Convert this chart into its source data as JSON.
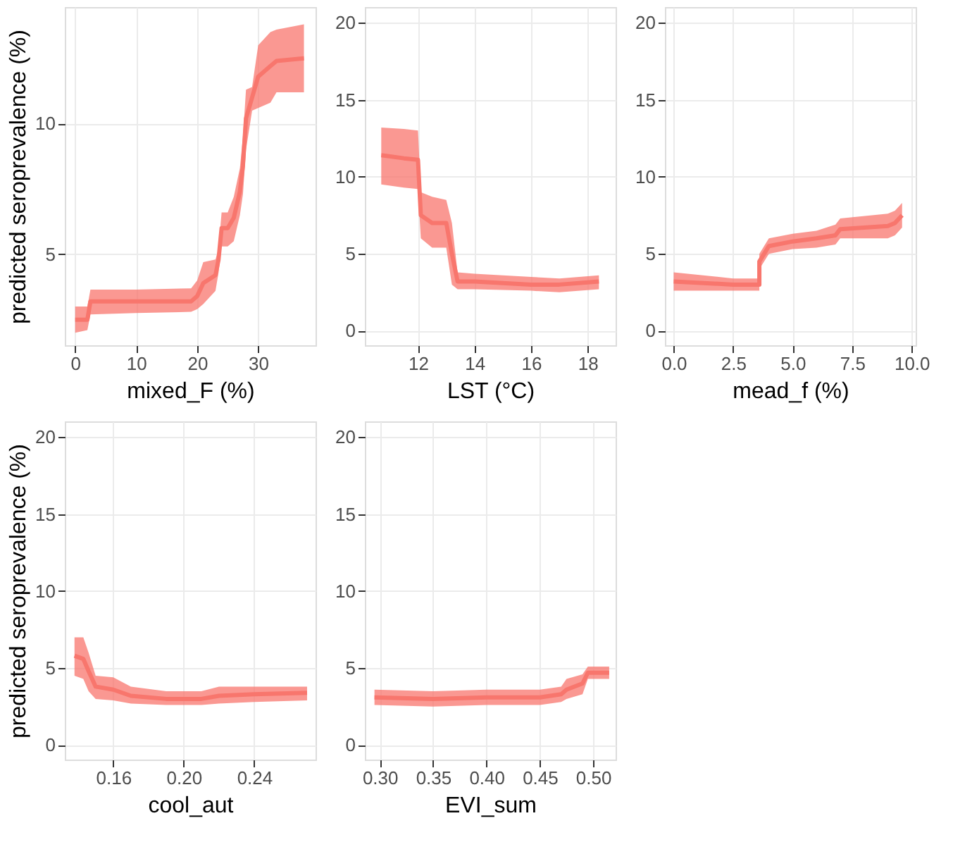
{
  "chart_data": [
    {
      "type": "line",
      "xlabel": "mixed_F (%)",
      "ylabel": "predicted seroprevalence (%)",
      "grid": true,
      "xlim": [
        -1.7,
        39.4
      ],
      "xticks": [
        0,
        10,
        20,
        30
      ],
      "ylim": [
        1.52,
        14.46
      ],
      "yticks": [
        5,
        10
      ],
      "x": [
        0,
        2,
        2.5,
        10,
        19,
        20,
        21,
        23,
        23.5,
        24,
        25,
        26,
        27,
        27.5,
        28,
        29,
        30,
        32,
        33,
        37.5
      ],
      "series": [
        {
          "color": "#f8766d",
          "values": [
            2.5,
            2.5,
            3.2,
            3.2,
            3.2,
            3.4,
            3.9,
            4.2,
            4.8,
            6.0,
            6.0,
            6.4,
            7.4,
            8.4,
            10.2,
            11.0,
            11.8,
            12.2,
            12.4,
            12.5
          ],
          "lower": [
            2.0,
            2.1,
            2.7,
            2.75,
            2.8,
            2.9,
            3.1,
            3.6,
            4.3,
            5.3,
            5.3,
            5.5,
            6.5,
            7.3,
            9.0,
            10.5,
            10.6,
            10.8,
            11.2,
            11.2
          ],
          "upper": [
            3.0,
            3.0,
            3.65,
            3.65,
            3.7,
            4.0,
            4.7,
            4.8,
            5.2,
            6.6,
            6.6,
            7.2,
            8.3,
            9.5,
            11.3,
            11.4,
            13.0,
            13.5,
            13.6,
            13.8
          ]
        }
      ]
    },
    {
      "type": "line",
      "xlabel": "LST (°C)",
      "grid": true,
      "xlim": [
        10.12,
        18.99
      ],
      "xticks": [
        12,
        14,
        16,
        18
      ],
      "ylim": [
        -0.94,
        21.02
      ],
      "yticks": [
        0,
        5,
        10,
        15,
        20
      ],
      "x": [
        10.7,
        11.5,
        12.0,
        12.1,
        12.5,
        13.0,
        13.2,
        13.4,
        14,
        16,
        17,
        18.4
      ],
      "series": [
        {
          "color": "#f8766d",
          "values": [
            11.4,
            11.2,
            11.1,
            7.5,
            7.0,
            7.0,
            5.0,
            3.2,
            3.2,
            3.0,
            3.0,
            3.2
          ],
          "lower": [
            9.5,
            9.3,
            9.2,
            6.0,
            5.4,
            5.4,
            3.0,
            2.7,
            2.7,
            2.6,
            2.5,
            2.7
          ],
          "upper": [
            13.2,
            13.1,
            13.0,
            9.0,
            8.7,
            8.5,
            7.0,
            3.8,
            3.7,
            3.5,
            3.4,
            3.6
          ]
        }
      ]
    },
    {
      "type": "line",
      "xlabel": "mead_f (%)",
      "grid": true,
      "xlim": [
        -0.37,
        10.17
      ],
      "xticks": [
        {
          "value": 0,
          "label": "0.0"
        },
        {
          "value": 2.5,
          "label": "2.5"
        },
        {
          "value": 5,
          "label": "5.0"
        },
        {
          "value": 7.5,
          "label": "7.5"
        },
        {
          "value": 10,
          "label": "10.0"
        }
      ],
      "ylim": [
        -0.94,
        21.02
      ],
      "yticks": [
        0,
        5,
        10,
        15,
        20
      ],
      "x": [
        0,
        2.5,
        3.6,
        3.6,
        4,
        5,
        6,
        6.8,
        7,
        9,
        9.3,
        9.6
      ],
      "series": [
        {
          "color": "#f8766d",
          "values": [
            3.2,
            3.0,
            3.0,
            4.5,
            5.5,
            5.8,
            6.0,
            6.2,
            6.6,
            6.8,
            7.0,
            7.5
          ],
          "lower": [
            2.6,
            2.6,
            2.6,
            4.0,
            5.0,
            5.3,
            5.4,
            5.6,
            6.0,
            6.0,
            6.2,
            6.7
          ],
          "upper": [
            3.8,
            3.4,
            3.4,
            5.0,
            6.0,
            6.3,
            6.5,
            6.9,
            7.3,
            7.6,
            7.8,
            8.3
          ]
        }
      ]
    },
    {
      "type": "line",
      "xlabel": "cool_aut",
      "ylabel": "predicted seroprevalence (%)",
      "grid": true,
      "xlim": [
        0.1325,
        0.2748
      ],
      "xticks": [
        {
          "value": 0.16,
          "label": "0.16"
        },
        {
          "value": 0.2,
          "label": "0.20"
        },
        {
          "value": 0.24,
          "label": "0.24"
        }
      ],
      "ylim": [
        -0.94,
        21.02
      ],
      "yticks": [
        0,
        5,
        10,
        15,
        20
      ],
      "x": [
        0.138,
        0.143,
        0.146,
        0.15,
        0.16,
        0.17,
        0.19,
        0.21,
        0.22,
        0.24,
        0.27
      ],
      "series": [
        {
          "color": "#f8766d",
          "values": [
            5.8,
            5.6,
            4.8,
            3.8,
            3.6,
            3.2,
            3.0,
            3.0,
            3.2,
            3.3,
            3.4
          ],
          "lower": [
            4.5,
            4.3,
            3.5,
            3.0,
            2.9,
            2.7,
            2.6,
            2.6,
            2.7,
            2.8,
            2.9
          ],
          "upper": [
            7.0,
            7.0,
            6.0,
            4.5,
            4.4,
            3.8,
            3.5,
            3.5,
            3.8,
            3.8,
            3.8
          ]
        }
      ]
    },
    {
      "type": "line",
      "xlabel": "EVI_sum",
      "grid": true,
      "xlim": [
        0.286,
        0.521
      ],
      "xticks": [
        {
          "value": 0.3,
          "label": "0.30"
        },
        {
          "value": 0.35,
          "label": "0.35"
        },
        {
          "value": 0.4,
          "label": "0.40"
        },
        {
          "value": 0.45,
          "label": "0.45"
        },
        {
          "value": 0.5,
          "label": "0.50"
        }
      ],
      "ylim": [
        -0.94,
        21.02
      ],
      "yticks": [
        0,
        5,
        10,
        15,
        20
      ],
      "x": [
        0.295,
        0.35,
        0.4,
        0.45,
        0.47,
        0.475,
        0.49,
        0.495,
        0.515
      ],
      "series": [
        {
          "color": "#f8766d",
          "values": [
            3.1,
            3.0,
            3.1,
            3.1,
            3.3,
            3.6,
            4.0,
            4.7,
            4.7
          ],
          "lower": [
            2.6,
            2.5,
            2.6,
            2.6,
            2.8,
            3.0,
            3.3,
            4.3,
            4.3
          ],
          "upper": [
            3.6,
            3.5,
            3.6,
            3.6,
            3.8,
            4.3,
            4.6,
            5.1,
            5.1
          ]
        }
      ]
    }
  ]
}
